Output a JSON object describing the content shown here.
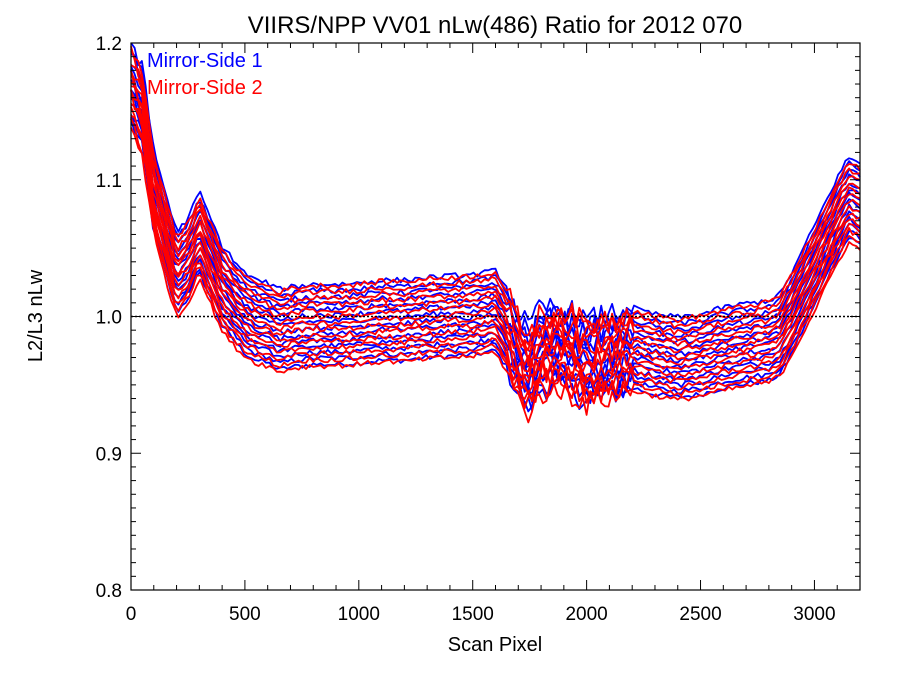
{
  "chart_data": {
    "type": "line",
    "title": "VIIRS/NPP VV01 nLw(486) Ratio for 2012 070",
    "xlabel": "Scan Pixel",
    "ylabel": "L2/L3 nLw",
    "xlim": [
      0,
      3200
    ],
    "ylim": [
      0.8,
      1.2
    ],
    "xticks": [
      0,
      500,
      1000,
      1500,
      2000,
      2500,
      3000
    ],
    "yticks": [
      0.8,
      0.9,
      1.0,
      1.1,
      1.2
    ],
    "ytick_labels": [
      "0.8",
      "0.9",
      "1.0",
      "1.1",
      "1.2"
    ],
    "reference_line": 1.0,
    "legend_position": "top-left",
    "colors": {
      "mirror_side_1": "#0000ff",
      "mirror_side_2": "#ff0000",
      "reference": "#000000"
    },
    "series": [
      {
        "name": "Mirror-Side 1",
        "color": "#0000ff",
        "x": [
          0,
          50,
          100,
          150,
          200,
          250,
          300,
          350,
          400,
          450,
          500,
          550,
          600,
          650,
          700,
          800,
          900,
          1000,
          1100,
          1200,
          1300,
          1400,
          1500,
          1600,
          1650,
          1700,
          1750,
          1800,
          1900,
          2000,
          2100,
          2200,
          2300,
          2400,
          2500,
          2600,
          2700,
          2800,
          2850,
          2900,
          3000,
          3100,
          3150,
          3200
        ],
        "values": [
          1.17,
          1.15,
          1.09,
          1.06,
          1.03,
          1.04,
          1.06,
          1.04,
          1.02,
          1.01,
          1.0,
          0.995,
          0.993,
          0.988,
          0.99,
          0.992,
          0.992,
          0.993,
          0.995,
          0.995,
          0.997,
          0.998,
          0.999,
          1.002,
          0.99,
          0.97,
          0.96,
          0.975,
          0.975,
          0.965,
          0.97,
          0.975,
          0.97,
          0.968,
          0.97,
          0.975,
          0.978,
          0.98,
          0.985,
          1.0,
          1.035,
          1.07,
          1.085,
          1.08
        ]
      },
      {
        "name": "Mirror-Side 2",
        "color": "#ff0000",
        "x": [
          0,
          50,
          100,
          150,
          200,
          250,
          300,
          350,
          400,
          450,
          500,
          550,
          600,
          650,
          700,
          800,
          900,
          1000,
          1100,
          1200,
          1300,
          1400,
          1500,
          1600,
          1650,
          1700,
          1750,
          1800,
          1900,
          2000,
          2100,
          2200,
          2300,
          2400,
          2500,
          2600,
          2700,
          2800,
          2850,
          2900,
          3000,
          3100,
          3150,
          3200
        ],
        "values": [
          1.165,
          1.145,
          1.085,
          1.055,
          1.025,
          1.035,
          1.055,
          1.035,
          1.015,
          1.005,
          0.997,
          0.992,
          0.99,
          0.985,
          0.988,
          0.99,
          0.99,
          0.991,
          0.993,
          0.993,
          0.995,
          0.996,
          0.997,
          1.0,
          0.985,
          0.965,
          0.955,
          0.97,
          0.972,
          0.962,
          0.967,
          0.972,
          0.968,
          0.965,
          0.968,
          0.972,
          0.975,
          0.978,
          0.983,
          0.998,
          1.03,
          1.065,
          1.08,
          1.075
        ]
      }
    ]
  }
}
